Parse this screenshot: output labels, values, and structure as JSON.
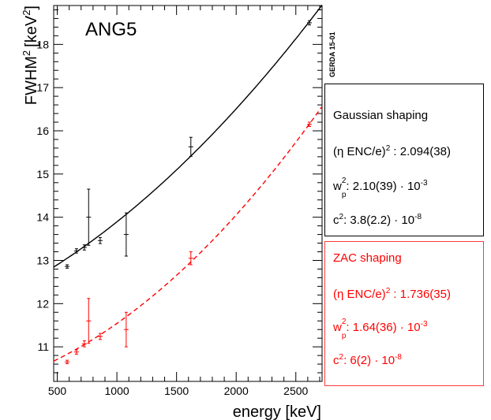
{
  "chart_data": {
    "type": "scatter",
    "title": "ANG5",
    "watermark": "GERDA 15-01",
    "xlabel": "energy [keV]",
    "ylabel_base": "FWHM",
    "ylabel_unit": "[keV",
    "ylabel_exp": "2",
    "xlim": [
      470,
      2720
    ],
    "ylim": [
      10.2,
      18.9
    ],
    "xticks": [
      500,
      1000,
      1500,
      2000,
      2500
    ],
    "yticks": [
      11,
      12,
      13,
      14,
      15,
      16,
      17,
      18
    ],
    "series": [
      {
        "key": "gaussian",
        "color": "#000000",
        "line": "solid",
        "points": [
          {
            "x": 583,
            "y": 12.86,
            "err": 0.04
          },
          {
            "x": 661,
            "y": 13.22,
            "err": 0.05
          },
          {
            "x": 727,
            "y": 13.3,
            "err": 0.06
          },
          {
            "x": 763,
            "y": 14.0,
            "err": 0.65
          },
          {
            "x": 860,
            "y": 13.46,
            "err": 0.07
          },
          {
            "x": 1078,
            "y": 13.6,
            "err": 0.5
          },
          {
            "x": 1620,
            "y": 15.63,
            "err": 0.22
          },
          {
            "x": 2614,
            "y": 18.5,
            "err": 0.05
          }
        ],
        "fit": {
          "enc": 2.094,
          "wp": 0.0021,
          "c": 3.8e-08
        }
      },
      {
        "key": "zac",
        "color": "#ff0000",
        "line": "dashed",
        "points": [
          {
            "x": 583,
            "y": 10.65,
            "err": 0.04
          },
          {
            "x": 661,
            "y": 10.88,
            "err": 0.05
          },
          {
            "x": 727,
            "y": 11.07,
            "err": 0.07
          },
          {
            "x": 763,
            "y": 11.6,
            "err": 0.52
          },
          {
            "x": 860,
            "y": 11.24,
            "err": 0.07
          },
          {
            "x": 1078,
            "y": 11.4,
            "err": 0.4
          },
          {
            "x": 1620,
            "y": 13.05,
            "err": 0.15
          },
          {
            "x": 2614,
            "y": 16.15,
            "err": 0.05
          }
        ],
        "fit": {
          "enc": 1.736,
          "wp": 0.00164,
          "c": 6e-08
        }
      }
    ]
  },
  "legend": {
    "gaussian": {
      "title": "Gaussian shaping",
      "enc_prefix": "(η ENC/e)",
      "enc_exp": "2",
      "enc_value": " : 2.094(38)",
      "wp_sym": "w",
      "wp_sup": "2",
      "wp_sub": "p",
      "wp_value": ": 2.10(39) · 10",
      "wp_exp": "-3",
      "c_sym": "c",
      "c_exp": "2",
      "c_value": ":  3.8(2.2) · 10",
      "c_val_exp": "-8"
    },
    "zac": {
      "title": "ZAC shaping",
      "enc_prefix": "(η ENC/e)",
      "enc_exp": "2",
      "enc_value": " : 1.736(35)",
      "wp_sym": "w",
      "wp_sup": "2",
      "wp_sub": "p",
      "wp_value": ": 1.64(36) · 10",
      "wp_exp": "-3",
      "c_sym": "c",
      "c_exp": "2",
      "c_value": ":  6(2) · 10",
      "c_val_exp": "-8"
    }
  }
}
